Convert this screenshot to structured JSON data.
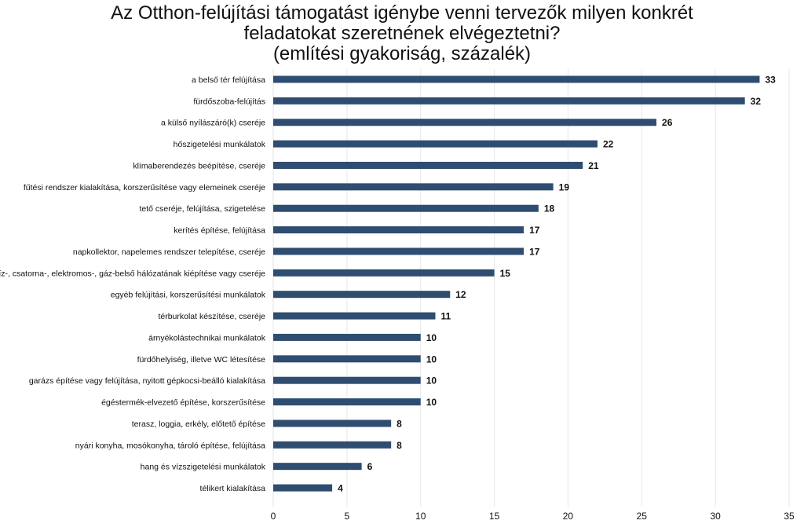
{
  "chart_data": {
    "type": "bar",
    "orientation": "horizontal",
    "title_lines": [
      "Az Otthon-felújítási támogatást igénybe venni tervezők milyen konkrét",
      "feladatokat szeretnének elvégeztetni?",
      "(említési gyakoriság, százalék)"
    ],
    "categories": [
      "a belső tér felújítása",
      "fürdőszoba-felújítás",
      "a külső nyílászáró(k) cseréje",
      "hőszigetelési munkálatok",
      "klímaberendezés beépítése, cseréje",
      "fűtési rendszer kialakítása, korszerűsítése vagy elemeinek cseréje",
      "tető cseréje, felújítása, szigetelése",
      "kerítés építése, felújítása",
      "napkollektor, napelemes rendszer telepítése, cseréje",
      "víz-, csatorna-, elektromos-, gáz-belső hálózatának kiépítése vagy cseréje",
      "egyéb felújítási, korszerűsítési munkálatok",
      "térburkolat készítése, cseréje",
      "árnyékolástechnikai munkálatok",
      "fürdőhelyiség, illetve WC létesítése",
      "garázs építése vagy felújítása, nyitott gépkocsi-beálló kialakítása",
      "égéstermék-elvezető építése, korszerűsítése",
      "terasz, loggia, erkély, előtető építése",
      "nyári konyha, mosókonyha, tároló építése, felújítása",
      "hang és vízszigetelési munkálatok",
      "télikert kialakítása"
    ],
    "values": [
      33,
      32,
      26,
      22,
      21,
      19,
      18,
      17,
      17,
      15,
      12,
      11,
      10,
      10,
      10,
      10,
      8,
      8,
      6,
      4
    ],
    "xlim": [
      0,
      35
    ],
    "xticks": [
      0,
      5,
      10,
      15,
      20,
      25,
      30,
      35
    ],
    "grid": true,
    "bar_color": "#2e4d70",
    "grid_color": "#e6e6e6"
  }
}
